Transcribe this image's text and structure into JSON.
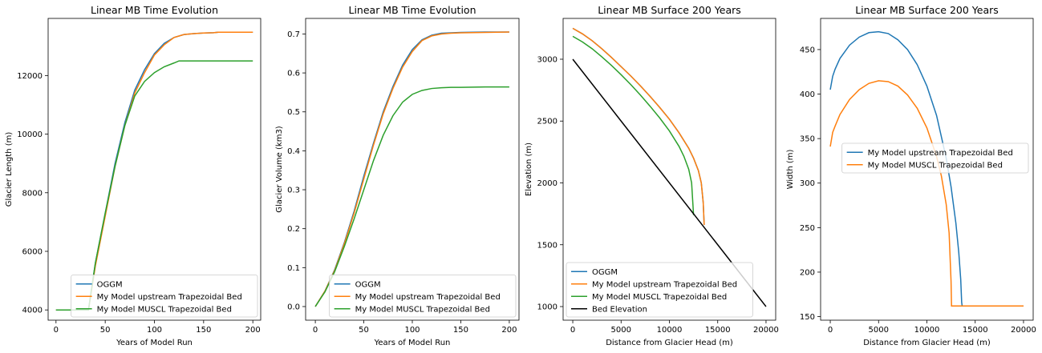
{
  "colors": {
    "OGGM": "#1f77b4",
    "upstream": "#ff7f0e",
    "muscl": "#2ca02c",
    "bed": "#000000"
  },
  "chart_data": [
    {
      "type": "line",
      "title": "Linear MB Time Evolution",
      "xlabel": "Years of Model Run",
      "ylabel": "Glacier Length (m)",
      "xlim": [
        -8,
        208
      ],
      "ylim": [
        3650,
        13950
      ],
      "xticks": [
        0,
        50,
        100,
        150,
        200
      ],
      "yticks": [
        4000,
        6000,
        8000,
        10000,
        12000
      ],
      "grid": false,
      "legend": "lower-right",
      "step": true,
      "series": [
        {
          "name": "OGGM",
          "color_key": "OGGM",
          "x": [
            0,
            33,
            40,
            50,
            60,
            70,
            80,
            90,
            100,
            110,
            120,
            130,
            140,
            150,
            160,
            165,
            200
          ],
          "y": [
            4000,
            4000,
            5600,
            7300,
            9000,
            10400,
            11500,
            12200,
            12750,
            13100,
            13300,
            13400,
            13430,
            13450,
            13460,
            13480,
            13480
          ]
        },
        {
          "name": "My Model upstream Trapezoidal Bed",
          "color_key": "upstream",
          "x": [
            0,
            33,
            40,
            50,
            60,
            70,
            80,
            90,
            100,
            110,
            120,
            130,
            140,
            150,
            160,
            165,
            200
          ],
          "y": [
            4000,
            4000,
            5500,
            7200,
            8900,
            10300,
            11400,
            12100,
            12700,
            13050,
            13300,
            13400,
            13430,
            13450,
            13460,
            13480,
            13480
          ]
        },
        {
          "name": "My Model MUSCL Trapezoidal Bed",
          "color_key": "muscl",
          "x": [
            0,
            33,
            40,
            50,
            60,
            70,
            80,
            90,
            100,
            110,
            120,
            125,
            200
          ],
          "y": [
            4000,
            4000,
            5600,
            7300,
            8900,
            10300,
            11300,
            11800,
            12100,
            12300,
            12430,
            12500,
            12500
          ]
        }
      ]
    },
    {
      "type": "line",
      "title": "Linear MB Time Evolution",
      "xlabel": "Years of Model Run",
      "ylabel": "Glacier Volume (km3)",
      "xlim": [
        -10,
        210
      ],
      "ylim": [
        -0.035,
        0.74
      ],
      "xticks": [
        0,
        50,
        100,
        150,
        200
      ],
      "yticks": [
        0.0,
        0.1,
        0.2,
        0.3,
        0.4,
        0.5,
        0.6,
        0.7
      ],
      "grid": false,
      "legend": "lower-right",
      "series": [
        {
          "name": "OGGM",
          "color_key": "OGGM",
          "x": [
            0,
            10,
            20,
            30,
            40,
            50,
            60,
            70,
            80,
            90,
            100,
            110,
            120,
            130,
            140,
            150,
            175,
            200
          ],
          "y": [
            0.0,
            0.04,
            0.095,
            0.165,
            0.245,
            0.335,
            0.42,
            0.5,
            0.565,
            0.62,
            0.66,
            0.685,
            0.697,
            0.702,
            0.703,
            0.704,
            0.705,
            0.705
          ]
        },
        {
          "name": "My Model upstream Trapezoidal Bed",
          "color_key": "upstream",
          "x": [
            0,
            10,
            20,
            30,
            40,
            50,
            60,
            70,
            80,
            90,
            100,
            110,
            120,
            130,
            140,
            150,
            175,
            200
          ],
          "y": [
            0.0,
            0.04,
            0.093,
            0.162,
            0.24,
            0.328,
            0.415,
            0.495,
            0.56,
            0.615,
            0.655,
            0.683,
            0.695,
            0.7,
            0.702,
            0.703,
            0.704,
            0.705
          ]
        },
        {
          "name": "My Model MUSCL Trapezoidal Bed",
          "color_key": "muscl",
          "x": [
            0,
            10,
            20,
            30,
            40,
            50,
            60,
            70,
            80,
            90,
            100,
            110,
            120,
            130,
            140,
            150,
            175,
            200
          ],
          "y": [
            0.0,
            0.038,
            0.09,
            0.155,
            0.225,
            0.3,
            0.375,
            0.44,
            0.49,
            0.525,
            0.545,
            0.555,
            0.56,
            0.562,
            0.563,
            0.563,
            0.564,
            0.564
          ]
        }
      ]
    },
    {
      "type": "line",
      "title": "Linear MB Surface 200 Years",
      "xlabel": "Distance from Glacier Head (m)",
      "ylabel": "Elevation (m)",
      "xlim": [
        -1000,
        21000
      ],
      "ylim": [
        890,
        3330
      ],
      "xticks": [
        0,
        5000,
        10000,
        15000,
        20000
      ],
      "yticks": [
        1000,
        1500,
        2000,
        2500,
        3000
      ],
      "grid": false,
      "legend": "lower-left",
      "series": [
        {
          "name": "OGGM",
          "color_key": "OGGM",
          "x": [
            0,
            1000,
            2000,
            3000,
            4000,
            5000,
            6000,
            7000,
            8000,
            9000,
            10000,
            11000,
            12000,
            12500,
            13000,
            13300,
            13500,
            13600
          ],
          "y": [
            3250,
            3205,
            3150,
            3085,
            3015,
            2940,
            2865,
            2785,
            2700,
            2610,
            2515,
            2405,
            2280,
            2200,
            2100,
            2000,
            1840,
            1660
          ]
        },
        {
          "name": "My Model upstream Trapezoidal Bed",
          "color_key": "upstream",
          "x": [
            0,
            1000,
            2000,
            3000,
            4000,
            5000,
            6000,
            7000,
            8000,
            9000,
            10000,
            11000,
            12000,
            12500,
            13000,
            13300,
            13500,
            13600
          ],
          "y": [
            3250,
            3205,
            3150,
            3085,
            3015,
            2940,
            2865,
            2785,
            2700,
            2610,
            2515,
            2405,
            2280,
            2200,
            2100,
            2000,
            1840,
            1660
          ]
        },
        {
          "name": "My Model MUSCL Trapezoidal Bed",
          "color_key": "muscl",
          "x": [
            0,
            1000,
            2000,
            3000,
            4000,
            5000,
            6000,
            7000,
            8000,
            9000,
            10000,
            11000,
            11500,
            12000,
            12300,
            12500
          ],
          "y": [
            3185,
            3140,
            3085,
            3020,
            2950,
            2875,
            2795,
            2710,
            2620,
            2525,
            2420,
            2295,
            2215,
            2110,
            2000,
            1740
          ]
        },
        {
          "name": "Bed Elevation",
          "color_key": "bed",
          "x": [
            0,
            20000
          ],
          "y": [
            3000,
            1000
          ]
        }
      ]
    },
    {
      "type": "line",
      "title": "Linear MB Surface 200 Years",
      "xlabel": "Distance from Glacier Head (m)",
      "ylabel": "Width (m)",
      "xlim": [
        -1000,
        21000
      ],
      "ylim": [
        146,
        485
      ],
      "xticks": [
        0,
        5000,
        10000,
        15000,
        20000
      ],
      "yticks": [
        150,
        200,
        250,
        300,
        350,
        400,
        450
      ],
      "grid": false,
      "legend": "center-right",
      "series": [
        {
          "name": "My Model upstream Trapezoidal Bed",
          "color_key": "OGGM",
          "x": [
            0,
            250,
            500,
            1000,
            2000,
            3000,
            4000,
            5000,
            6000,
            7000,
            8000,
            9000,
            10000,
            11000,
            12000,
            12500,
            13000,
            13300,
            13500,
            13600,
            13650,
            14000,
            20000
          ],
          "y": [
            405,
            420,
            428,
            440,
            455,
            464,
            469,
            470,
            468,
            461,
            450,
            433,
            409,
            376,
            328,
            296,
            255,
            222,
            192,
            166,
            162,
            162,
            162
          ]
        },
        {
          "name": "My Model MUSCL Trapezoidal Bed",
          "color_key": "upstream",
          "x": [
            0,
            250,
            500,
            1000,
            2000,
            3000,
            4000,
            5000,
            6000,
            7000,
            8000,
            9000,
            10000,
            11000,
            11500,
            12000,
            12300,
            12500,
            12550,
            13000,
            20000
          ],
          "y": [
            341,
            357,
            364,
            377,
            394,
            405,
            412,
            415,
            414,
            409,
            399,
            384,
            362,
            330,
            308,
            276,
            244,
            190,
            162,
            162,
            162
          ]
        }
      ]
    }
  ]
}
